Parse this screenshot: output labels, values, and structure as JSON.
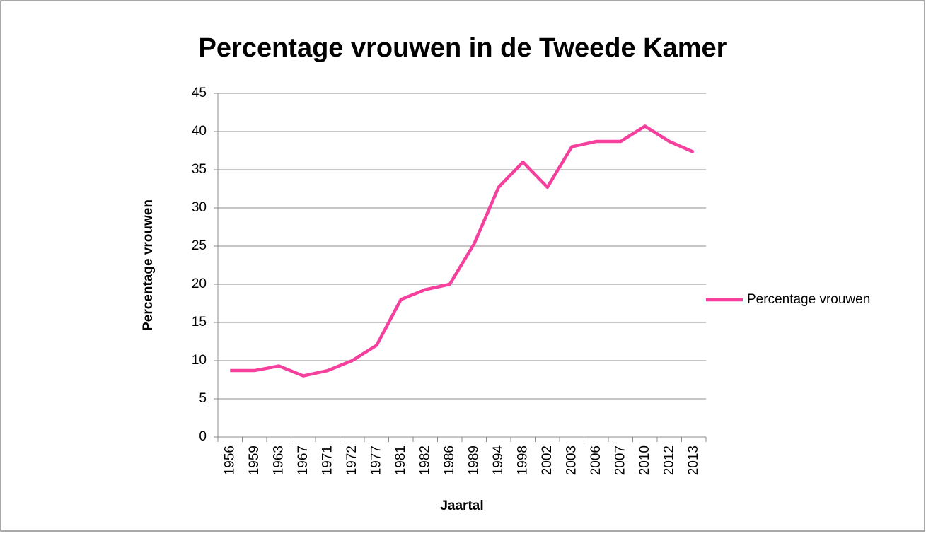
{
  "chart_data": {
    "type": "line",
    "title": "Percentage vrouwen in de Tweede Kamer",
    "x_label": "Jaartal",
    "y_label": "Percentage vrouwen",
    "categories": [
      "1956",
      "1959",
      "1963",
      "1967",
      "1971",
      "1972",
      "1977",
      "1981",
      "1982",
      "1986",
      "1989",
      "1994",
      "1998",
      "2002",
      "2003",
      "2006",
      "2007",
      "2010",
      "2012",
      "2013"
    ],
    "series": [
      {
        "name": "Percentage vrouwen",
        "color": "#f5409e",
        "values": [
          8.7,
          8.7,
          9.3,
          8.0,
          8.7,
          10.0,
          12.0,
          18.0,
          19.3,
          20.0,
          25.3,
          32.7,
          36.0,
          32.7,
          38.0,
          38.7,
          38.7,
          40.7,
          38.7,
          37.3
        ]
      }
    ],
    "ylim": [
      0,
      45
    ],
    "yticks": [
      0,
      5,
      10,
      15,
      20,
      25,
      30,
      35,
      40,
      45
    ],
    "grid": true,
    "legend": "right"
  }
}
